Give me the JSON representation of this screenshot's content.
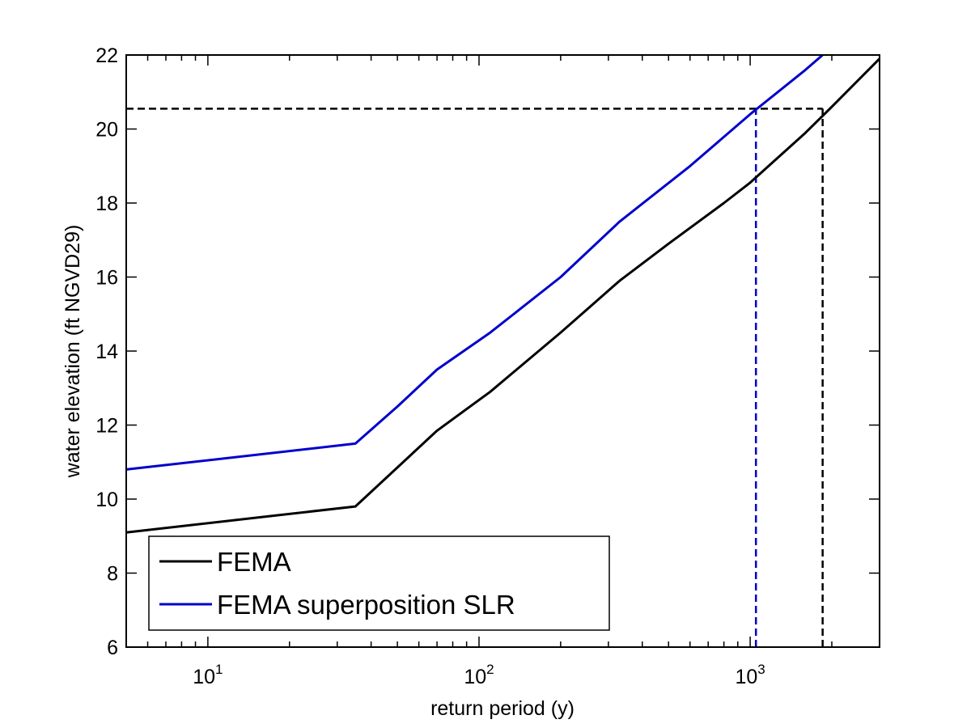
{
  "chart_data": {
    "type": "line",
    "title": "",
    "xlabel": "return period (y)",
    "ylabel": "water elevation (ft NGVD29)",
    "x_scale": "log",
    "xlim": [
      5,
      3000
    ],
    "ylim": [
      6,
      22
    ],
    "grid": false,
    "legend_position": "bottom-left",
    "x_ticks": [
      {
        "value": 10,
        "base": "10",
        "exp": "1"
      },
      {
        "value": 100,
        "base": "10",
        "exp": "2"
      },
      {
        "value": 1000,
        "base": "10",
        "exp": "3"
      }
    ],
    "y_ticks": [
      6,
      8,
      10,
      12,
      14,
      16,
      18,
      20,
      22
    ],
    "series": [
      {
        "name": "FEMA",
        "color": "#000000",
        "style": "solid",
        "points": [
          [
            5,
            9.1
          ],
          [
            35,
            9.8
          ],
          [
            70,
            11.85
          ],
          [
            110,
            12.9
          ],
          [
            200,
            14.5
          ],
          [
            330,
            15.9
          ],
          [
            500,
            16.9
          ],
          [
            800,
            18.0
          ],
          [
            1000,
            18.55
          ],
          [
            1600,
            19.9
          ],
          [
            2000,
            20.6
          ],
          [
            3000,
            21.9
          ]
        ]
      },
      {
        "name": "FEMA superposition SLR",
        "color": "#0000cc",
        "style": "solid",
        "points": [
          [
            5,
            10.8
          ],
          [
            35,
            11.5
          ],
          [
            50,
            12.5
          ],
          [
            70,
            13.5
          ],
          [
            110,
            14.5
          ],
          [
            200,
            16.0
          ],
          [
            330,
            17.5
          ],
          [
            600,
            19.0
          ],
          [
            1000,
            20.4
          ],
          [
            1600,
            21.6
          ],
          [
            1850,
            22.0
          ]
        ]
      }
    ],
    "reference_lines": [
      {
        "kind": "horizontal",
        "y": 20.55,
        "x_from": 5,
        "x_to": 1850,
        "color": "#000000",
        "style": "dashed"
      },
      {
        "kind": "vertical",
        "x": 1050,
        "y_from": 6,
        "y_to": 20.55,
        "color": "#0000cc",
        "style": "dashed"
      },
      {
        "kind": "vertical",
        "x": 1850,
        "y_from": 6,
        "y_to": 20.55,
        "color": "#000000",
        "style": "dashed"
      }
    ]
  }
}
